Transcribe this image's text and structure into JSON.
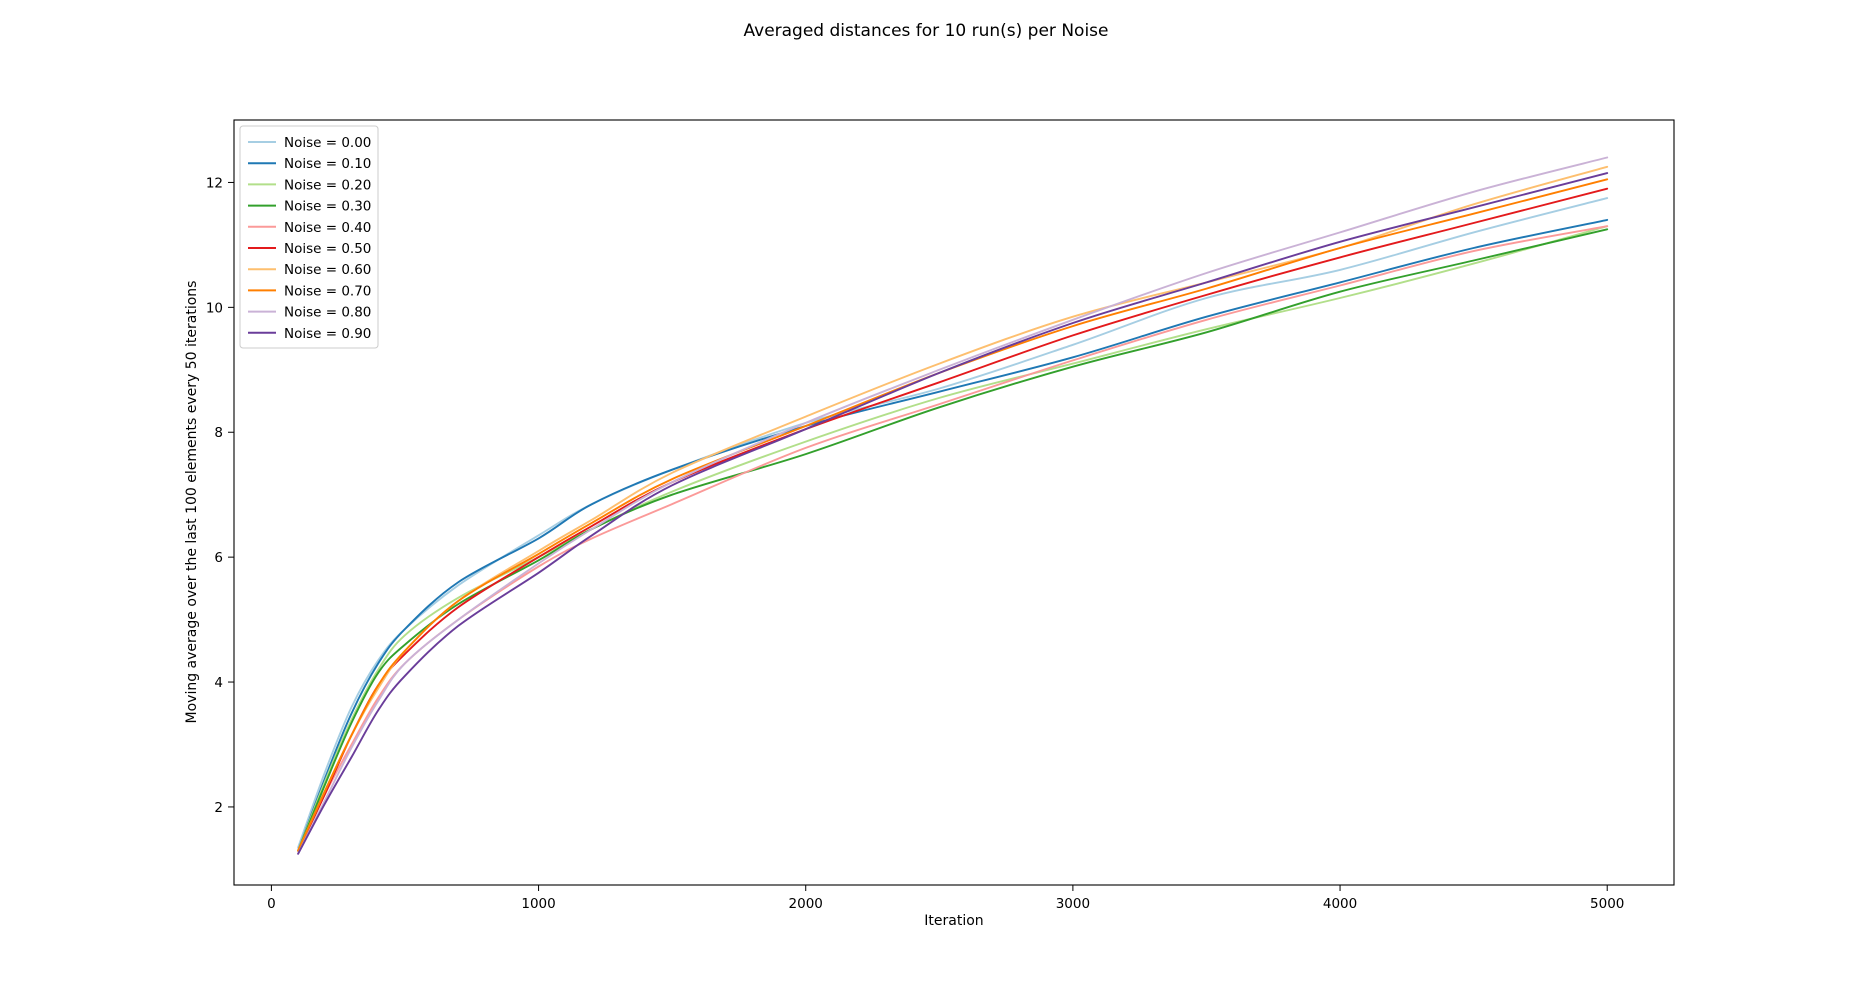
{
  "chart_data": {
    "type": "line",
    "title": "Averaged distances for 10 run(s) per Noise",
    "xlabel": "Iteration",
    "ylabel": "Moving average over the last 100 elements every 50 iterations",
    "xlim": [
      -140,
      5250
    ],
    "ylim": [
      0.75,
      13.0
    ],
    "xticks": [
      0,
      1000,
      2000,
      3000,
      4000,
      5000
    ],
    "yticks": [
      2,
      4,
      6,
      8,
      10,
      12
    ],
    "grid": false,
    "legend_position": "upper-left",
    "x": [
      100,
      200,
      300,
      400,
      500,
      700,
      1000,
      1200,
      1500,
      2000,
      2500,
      3000,
      3500,
      4000,
      4500,
      5000
    ],
    "series": [
      {
        "name": "Noise = 0.00",
        "color": "#a6cee3",
        "values": [
          1.35,
          2.55,
          3.6,
          4.35,
          4.85,
          5.55,
          6.35,
          6.85,
          7.4,
          8.15,
          8.7,
          9.4,
          10.15,
          10.6,
          11.2,
          11.75
        ]
      },
      {
        "name": "Noise = 0.10",
        "color": "#1f78b4",
        "values": [
          1.3,
          2.45,
          3.5,
          4.3,
          4.85,
          5.6,
          6.3,
          6.85,
          7.4,
          8.1,
          8.65,
          9.2,
          9.85,
          10.4,
          10.95,
          11.4
        ]
      },
      {
        "name": "Noise = 0.20",
        "color": "#b2df8a",
        "values": [
          1.3,
          2.4,
          3.4,
          4.2,
          4.75,
          5.35,
          6.0,
          6.45,
          7.05,
          7.85,
          8.55,
          9.1,
          9.65,
          10.15,
          10.7,
          11.3
        ]
      },
      {
        "name": "Noise = 0.30",
        "color": "#33a02c",
        "values": [
          1.3,
          2.35,
          3.35,
          4.15,
          4.6,
          5.25,
          5.95,
          6.45,
          7.0,
          7.65,
          8.4,
          9.05,
          9.6,
          10.25,
          10.75,
          11.25
        ]
      },
      {
        "name": "Noise = 0.40",
        "color": "#fb9a99",
        "values": [
          1.3,
          2.2,
          3.0,
          3.75,
          4.3,
          5.0,
          5.85,
          6.3,
          6.85,
          7.75,
          8.45,
          9.15,
          9.8,
          10.35,
          10.9,
          11.3
        ]
      },
      {
        "name": "Noise = 0.50",
        "color": "#e31a1c",
        "values": [
          1.3,
          2.2,
          3.15,
          3.95,
          4.45,
          5.2,
          6.0,
          6.5,
          7.2,
          8.05,
          8.8,
          9.55,
          10.2,
          10.8,
          11.35,
          11.9
        ]
      },
      {
        "name": "Noise = 0.60",
        "color": "#fdbf6f",
        "values": [
          1.3,
          2.25,
          3.15,
          3.9,
          4.5,
          5.3,
          6.1,
          6.6,
          7.35,
          8.25,
          9.1,
          9.85,
          10.4,
          10.95,
          11.65,
          12.25
        ]
      },
      {
        "name": "Noise = 0.70",
        "color": "#ff7f00",
        "values": [
          1.3,
          2.25,
          3.15,
          3.95,
          4.5,
          5.3,
          6.05,
          6.55,
          7.25,
          8.1,
          8.95,
          9.7,
          10.3,
          10.95,
          11.5,
          12.05
        ]
      },
      {
        "name": "Noise = 0.80",
        "color": "#cab2d6",
        "values": [
          1.25,
          2.1,
          2.95,
          3.7,
          4.3,
          5.0,
          5.9,
          6.45,
          7.2,
          8.15,
          9.0,
          9.8,
          10.55,
          11.2,
          11.85,
          12.4
        ]
      },
      {
        "name": "Noise = 0.90",
        "color": "#6a3d9a",
        "values": [
          1.25,
          2.05,
          2.8,
          3.55,
          4.1,
          4.9,
          5.75,
          6.35,
          7.15,
          8.05,
          8.95,
          9.75,
          10.4,
          11.05,
          11.6,
          12.15
        ]
      }
    ]
  }
}
